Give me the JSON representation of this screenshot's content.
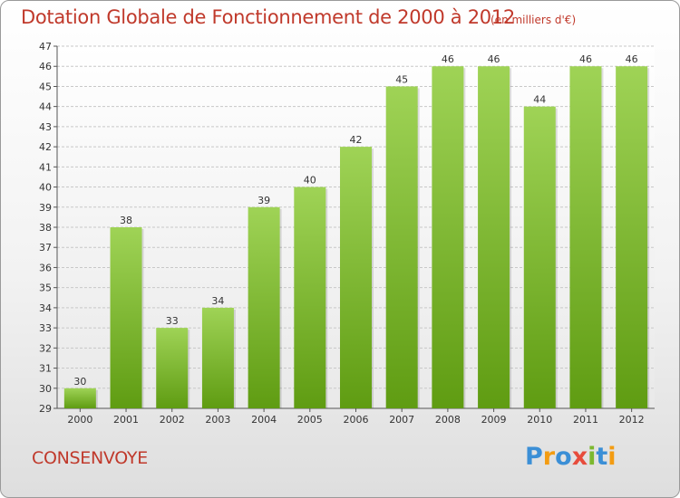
{
  "title": "Dotation Globale de Fonctionnement de 2000 à 2012",
  "subtitle": "(en milliers d'€)",
  "commune": "CONSENVOYE",
  "logo": {
    "letters": [
      "P",
      "r",
      "o",
      "x",
      "i",
      "t",
      "i"
    ],
    "colors": [
      "#3b8fd6",
      "#f39c12",
      "#3b8fd6",
      "#e74c3c",
      "#7cb82f",
      "#3b8fd6",
      "#f39c12"
    ]
  },
  "colors": {
    "title": "#c0392b",
    "bar_top": "#9fd356",
    "bar_bottom": "#5f9c12",
    "grid": "#c8c8c8"
  },
  "chart_data": {
    "type": "bar",
    "categories": [
      "2000",
      "2001",
      "2002",
      "2003",
      "2004",
      "2005",
      "2006",
      "2007",
      "2008",
      "2009",
      "2010",
      "2011",
      "2012"
    ],
    "values": [
      30,
      38,
      33,
      34,
      39,
      40,
      42,
      45,
      46,
      46,
      44,
      46,
      46
    ],
    "ylim": [
      29,
      47
    ],
    "yticks": [
      29,
      30,
      31,
      32,
      33,
      34,
      35,
      36,
      37,
      38,
      39,
      40,
      41,
      42,
      43,
      44,
      45,
      46,
      47
    ],
    "grid": true,
    "data_labels": true
  }
}
